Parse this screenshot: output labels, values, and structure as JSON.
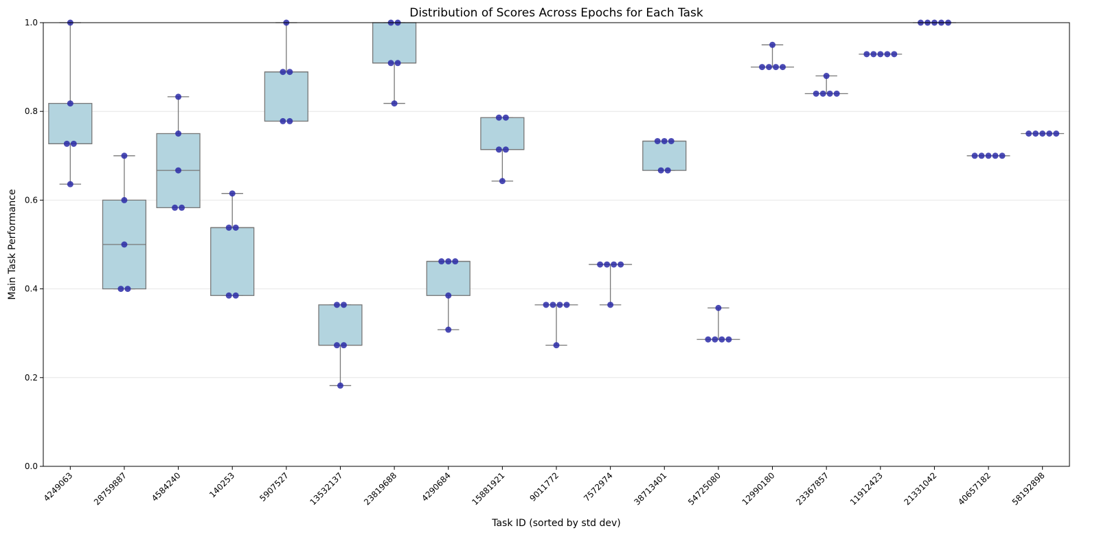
{
  "chart_data": {
    "type": "box",
    "title": "Distribution of Scores Across Epochs for Each Task",
    "xlabel": "Task ID (sorted by std dev)",
    "ylabel": "Main Task Performance",
    "ylim": [
      0,
      1
    ],
    "yticks": [
      "0.0",
      "0.2",
      "0.4",
      "0.6",
      "0.8",
      "1.0"
    ],
    "grid": "horizontal",
    "box_color": "#b3d4df",
    "point_color": "#2b2ba8",
    "categories": [
      "4249063",
      "28759887",
      "4584240",
      "140253",
      "5907527",
      "13532137",
      "23819688",
      "4290684",
      "15881921",
      "9011772",
      "7572974",
      "38713401",
      "54725080",
      "12990180",
      "23367857",
      "11912423",
      "21331042",
      "40657182",
      "58192898"
    ],
    "values": [
      [
        1.0,
        0.818,
        0.727,
        0.727,
        0.636
      ],
      [
        0.7,
        0.6,
        0.5,
        0.4,
        0.4
      ],
      [
        0.833,
        0.75,
        0.667,
        0.583,
        0.583
      ],
      [
        0.615,
        0.538,
        0.538,
        0.385,
        0.385
      ],
      [
        1.0,
        0.889,
        0.889,
        0.778,
        0.778
      ],
      [
        0.364,
        0.364,
        0.273,
        0.273,
        0.182
      ],
      [
        1.0,
        1.0,
        0.909,
        0.909,
        0.818
      ],
      [
        0.462,
        0.462,
        0.462,
        0.385,
        0.308
      ],
      [
        0.786,
        0.786,
        0.714,
        0.714,
        0.643
      ],
      [
        0.364,
        0.364,
        0.364,
        0.364,
        0.273
      ],
      [
        0.455,
        0.455,
        0.455,
        0.455,
        0.364
      ],
      [
        0.733,
        0.733,
        0.733,
        0.667,
        0.667
      ],
      [
        0.357,
        0.286,
        0.286,
        0.286,
        0.286
      ],
      [
        0.95,
        0.9,
        0.9,
        0.9,
        0.9
      ],
      [
        0.88,
        0.84,
        0.84,
        0.84,
        0.84
      ],
      [
        0.929,
        0.929,
        0.929,
        0.929,
        0.929
      ],
      [
        1.0,
        1.0,
        1.0,
        1.0,
        1.0
      ],
      [
        0.7,
        0.7,
        0.7,
        0.7,
        0.7
      ],
      [
        0.75,
        0.75,
        0.75,
        0.75,
        0.75
      ]
    ]
  }
}
